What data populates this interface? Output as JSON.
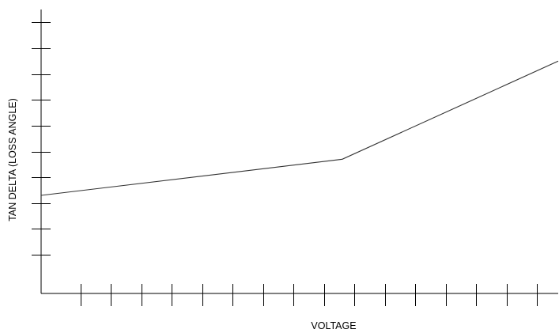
{
  "chart_data": {
    "type": "line",
    "title": "",
    "xlabel": "VOLTAGE",
    "ylabel": "TAN DELTA (LOSS ANGLE)",
    "xlim": [
      0,
      17
    ],
    "ylim": [
      0,
      11
    ],
    "x_ticks": [
      1.3,
      2.3,
      3.3,
      4.3,
      5.3,
      6.3,
      7.3,
      8.3,
      9.3,
      10.3,
      11.3,
      12.3,
      13.3,
      14.3,
      15.3,
      16.3
    ],
    "y_ticks": [
      1.5,
      2.5,
      3.5,
      4.5,
      5.5,
      6.5,
      7.5,
      8.5,
      9.5,
      10.5
    ],
    "grid": false,
    "series": [
      {
        "x": [
          0,
          9.9,
          17
        ],
        "y": [
          3.8,
          5.2,
          9.0
        ],
        "color": "#333333"
      }
    ]
  }
}
